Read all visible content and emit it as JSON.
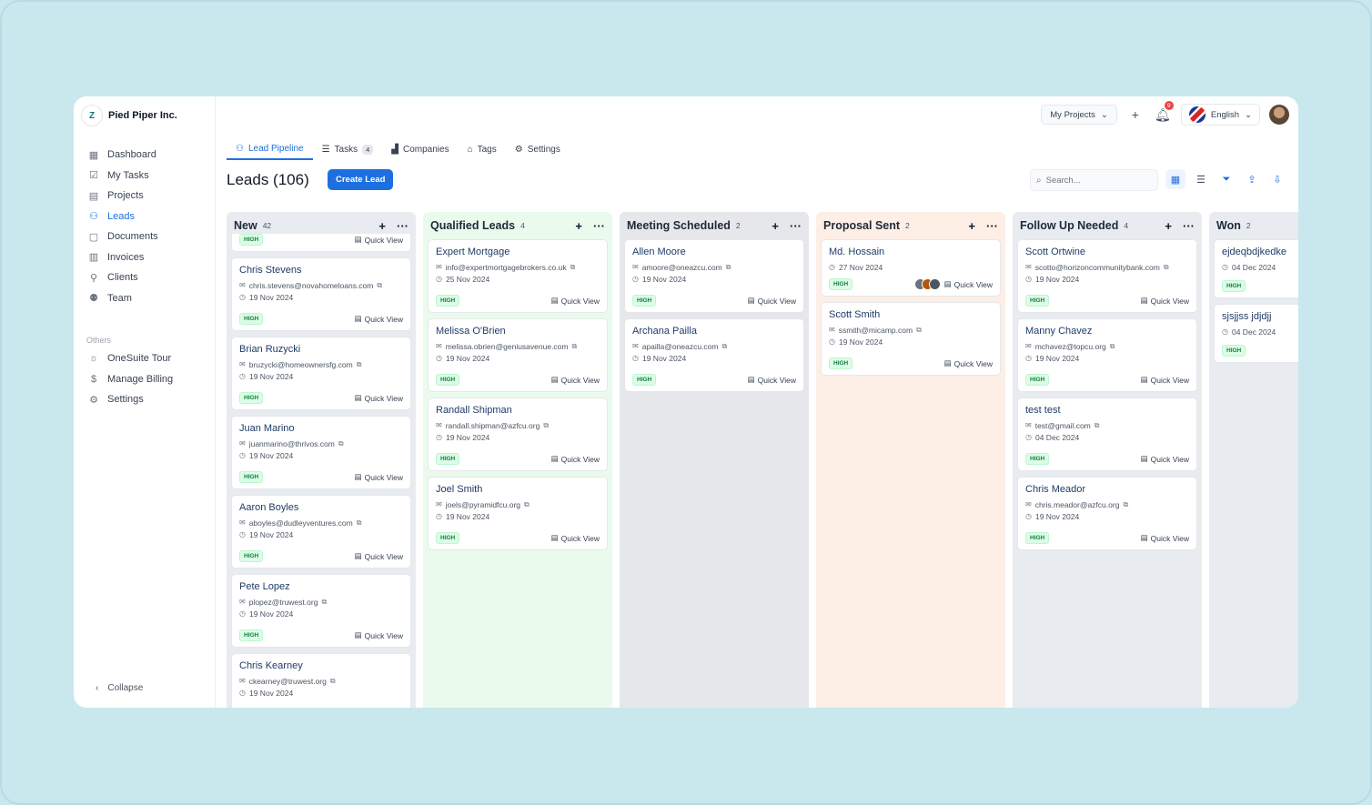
{
  "brand": {
    "name": "Pied Piper Inc.",
    "logo_text": "Z"
  },
  "sidebar": {
    "items": [
      {
        "label": "Dashboard",
        "icon": "dashboard-icon",
        "glyph": "▦"
      },
      {
        "label": "My Tasks",
        "icon": "tasks-icon",
        "glyph": "☑"
      },
      {
        "label": "Projects",
        "icon": "projects-icon",
        "glyph": "▤"
      },
      {
        "label": "Leads",
        "icon": "leads-icon",
        "glyph": "⚇",
        "active": true
      },
      {
        "label": "Documents",
        "icon": "documents-icon",
        "glyph": "▢"
      },
      {
        "label": "Invoices",
        "icon": "invoices-icon",
        "glyph": "▥"
      },
      {
        "label": "Clients",
        "icon": "clients-icon",
        "glyph": "⚲"
      },
      {
        "label": "Team",
        "icon": "team-icon",
        "glyph": "⚉"
      }
    ],
    "others_label": "Others",
    "others": [
      {
        "label": "OneSuite Tour",
        "icon": "sun-icon",
        "glyph": "☼"
      },
      {
        "label": "Manage Billing",
        "icon": "dollar-icon",
        "glyph": "$"
      },
      {
        "label": "Settings",
        "icon": "gear-icon",
        "glyph": "⚙"
      }
    ],
    "collapse_label": "Collapse"
  },
  "topbar": {
    "my_projects": "My Projects",
    "notif_count": "9",
    "language": "English"
  },
  "tabs": [
    {
      "label": "Lead Pipeline",
      "glyph": "⚇",
      "active": true
    },
    {
      "label": "Tasks",
      "glyph": "☰",
      "count": "4"
    },
    {
      "label": "Companies",
      "glyph": "▟"
    },
    {
      "label": "Tags",
      "glyph": "⌂"
    },
    {
      "label": "Settings",
      "glyph": "⚙"
    }
  ],
  "leads_title": "Leads (106)",
  "create_label": "Create Lead",
  "search_placeholder": "Search...",
  "quick_view": "Quick View",
  "columns": [
    {
      "name": "New",
      "count": "42",
      "bg": "#e8ebf0",
      "partial_first": true,
      "cards": [
        {
          "name": "Chris Stevens",
          "email": "chris.stevens@novahomeloans.com",
          "date": "19 Nov 2024",
          "priority": "HIGH"
        },
        {
          "name": "Brian Ruzycki",
          "email": "bruzycki@homeownersfg.com",
          "date": "19 Nov 2024",
          "priority": "HIGH"
        },
        {
          "name": "Juan Marino",
          "email": "juanmarino@thrivos.com",
          "date": "19 Nov 2024",
          "priority": "HIGH"
        },
        {
          "name": "Aaron Boyles",
          "email": "aboyles@dudleyventures.com",
          "date": "19 Nov 2024",
          "priority": "HIGH"
        },
        {
          "name": "Pete Lopez",
          "email": "plopez@truwest.org",
          "date": "19 Nov 2024",
          "priority": "HIGH"
        },
        {
          "name": "Chris Kearney",
          "email": "ckearney@truwest.org",
          "date": "19 Nov 2024",
          "priority": "HIGH"
        }
      ]
    },
    {
      "name": "Qualified Leads",
      "count": "4",
      "bg": "#eafbee",
      "cards": [
        {
          "name": "Expert Mortgage",
          "email": "info@expertmortgagebrokers.co.uk",
          "date": "25 Nov 2024",
          "priority": "HIGH"
        },
        {
          "name": "Melissa O'Brien",
          "email": "melissa.obrien@geniusavenue.com",
          "date": "19 Nov 2024",
          "priority": "HIGH"
        },
        {
          "name": "Randall Shipman",
          "email": "randall.shipman@azfcu.org",
          "date": "19 Nov 2024",
          "priority": "HIGH"
        },
        {
          "name": "Joel Smith",
          "email": "joels@pyramidfcu.org",
          "date": "19 Nov 2024",
          "priority": "HIGH"
        }
      ]
    },
    {
      "name": "Meeting Scheduled",
      "count": "2",
      "bg": "#e6e7ea",
      "cards": [
        {
          "name": "Allen Moore",
          "email": "amoore@oneazcu.com",
          "date": "19 Nov 2024",
          "priority": "HIGH"
        },
        {
          "name": "Archana Pailla",
          "email": "apailla@oneazcu.com",
          "date": "19 Nov 2024",
          "priority": "HIGH"
        }
      ]
    },
    {
      "name": "Proposal Sent",
      "count": "2",
      "bg": "#fdeee6",
      "cards": [
        {
          "name": "Md. Hossain",
          "date": "27 Nov 2024",
          "priority": "HIGH",
          "avatars": true
        },
        {
          "name": "Scott Smith",
          "email": "ssmith@micamp.com",
          "date": "19 Nov 2024",
          "priority": "HIGH"
        }
      ]
    },
    {
      "name": "Follow Up Needed",
      "count": "4",
      "bg": "#e8ebf0",
      "cards": [
        {
          "name": "Scott Ortwine",
          "email": "scotto@horizoncommunitybank.com",
          "date": "19 Nov 2024",
          "priority": "HIGH"
        },
        {
          "name": "Manny Chavez",
          "email": "mchavez@topcu.org",
          "date": "19 Nov 2024",
          "priority": "HIGH"
        },
        {
          "name": "test test",
          "email": "test@gmail.com",
          "date": "04 Dec 2024",
          "priority": "HIGH"
        },
        {
          "name": "Chris Meador",
          "email": "chris.meador@azfcu.org",
          "date": "19 Nov 2024",
          "priority": "HIGH"
        }
      ]
    },
    {
      "name": "Won",
      "count": "2",
      "bg": "#e8ebf0",
      "cards": [
        {
          "name": "ejdeqbdjkedke",
          "date": "04 Dec 2024",
          "priority": "HIGH",
          "noqv": true
        },
        {
          "name": "sjsjjss jdjdjj",
          "date": "04 Dec 2024",
          "priority": "HIGH",
          "noqv": true
        }
      ]
    }
  ]
}
